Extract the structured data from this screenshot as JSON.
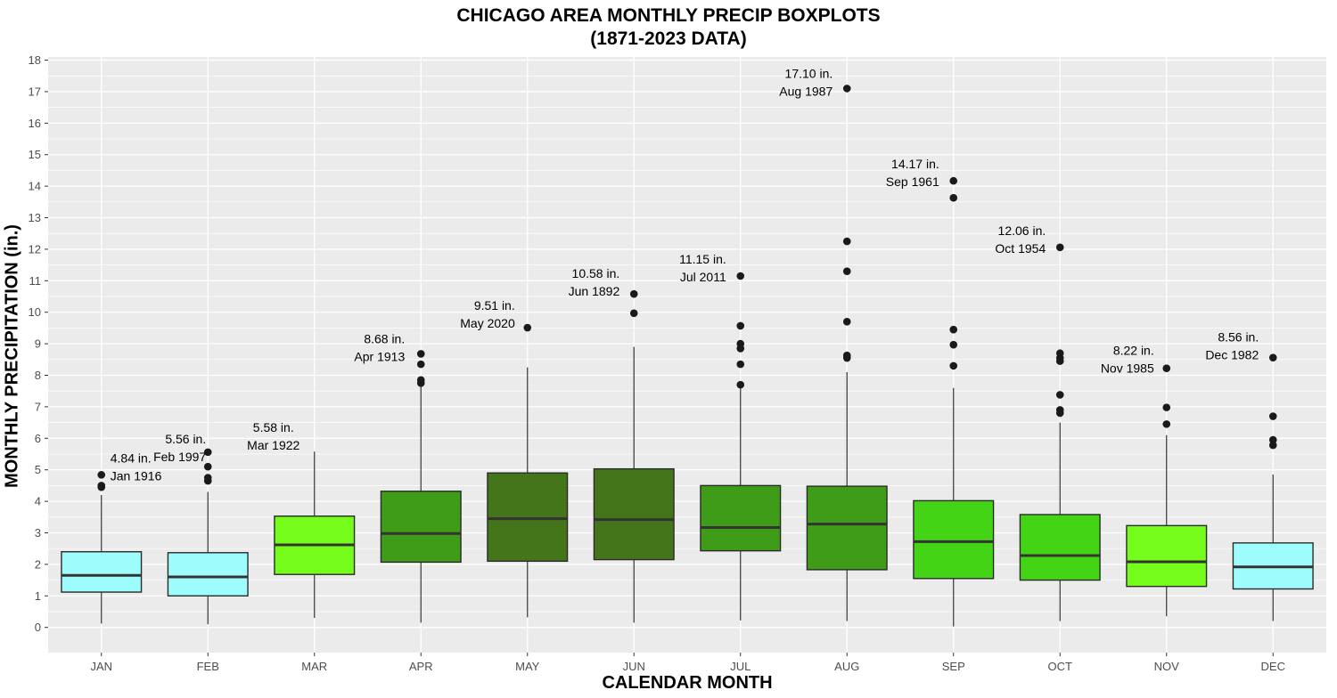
{
  "chart_data": {
    "type": "boxplot",
    "title": "CHICAGO AREA MONTHLY PRECIP BOXPLOTS",
    "subtitle": "(1871-2023 DATA)",
    "xlabel": "CALENDAR MONTH",
    "ylabel": "MONTHLY PRECIPITATION (in.)",
    "ylim": [
      -0.8,
      18.1
    ],
    "yticks": [
      0,
      1,
      2,
      3,
      4,
      5,
      6,
      7,
      8,
      9,
      10,
      11,
      12,
      13,
      14,
      15,
      16,
      17,
      18
    ],
    "grid": true,
    "categories": [
      "JAN",
      "FEB",
      "MAR",
      "APR",
      "MAY",
      "JUN",
      "JUL",
      "AUG",
      "SEP",
      "OCT",
      "NOV",
      "DEC"
    ],
    "boxes": [
      {
        "month": "JAN",
        "min": 0.12,
        "q1": 1.12,
        "median": 1.65,
        "q3": 2.4,
        "max": 4.2,
        "outliers": [
          4.84,
          4.5,
          4.45
        ],
        "color": "#9ffcfc",
        "record_value": "4.84 in.",
        "record_date": "Jan 1916"
      },
      {
        "month": "FEB",
        "min": 0.1,
        "q1": 1.0,
        "median": 1.6,
        "q3": 2.37,
        "max": 4.3,
        "outliers": [
          5.56,
          5.1,
          4.75,
          4.65
        ],
        "color": "#9ffcfc",
        "record_value": "5.56 in.",
        "record_date": "Feb 1997"
      },
      {
        "month": "MAR",
        "min": 0.3,
        "q1": 1.68,
        "median": 2.62,
        "q3": 3.53,
        "max": 5.58,
        "outliers": [],
        "color": "#76fc1b",
        "record_value": "5.58 in.",
        "record_date": "Mar 1922"
      },
      {
        "month": "APR",
        "min": 0.15,
        "q1": 2.07,
        "median": 2.98,
        "q3": 4.32,
        "max": 7.65,
        "outliers": [
          8.68,
          8.35,
          7.85,
          7.75
        ],
        "color": "#3f9c18",
        "record_value": "8.68 in.",
        "record_date": "Apr 1913"
      },
      {
        "month": "MAY",
        "min": 0.32,
        "q1": 2.1,
        "median": 3.45,
        "q3": 4.9,
        "max": 8.25,
        "outliers": [
          9.51
        ],
        "color": "#45751b",
        "record_value": "9.51 in.",
        "record_date": "May 2020"
      },
      {
        "month": "JUN",
        "min": 0.15,
        "q1": 2.15,
        "median": 3.42,
        "q3": 5.03,
        "max": 8.9,
        "outliers": [
          10.58,
          9.97
        ],
        "color": "#45751b",
        "record_value": "10.58 in.",
        "record_date": "Jun 1892"
      },
      {
        "month": "JUL",
        "min": 0.22,
        "q1": 2.43,
        "median": 3.17,
        "q3": 4.5,
        "max": 7.6,
        "outliers": [
          11.15,
          9.57,
          9.0,
          8.85,
          8.35,
          7.7
        ],
        "color": "#3f9c18",
        "record_value": "11.15 in.",
        "record_date": "Jul 2011"
      },
      {
        "month": "AUG",
        "min": 0.2,
        "q1": 1.83,
        "median": 3.28,
        "q3": 4.48,
        "max": 8.1,
        "outliers": [
          17.1,
          12.25,
          11.3,
          9.7,
          8.63,
          8.55
        ],
        "color": "#3f9c18",
        "record_value": "17.10 in.",
        "record_date": "Aug 1987"
      },
      {
        "month": "SEP",
        "min": 0.03,
        "q1": 1.55,
        "median": 2.72,
        "q3": 4.02,
        "max": 7.6,
        "outliers": [
          14.17,
          13.63,
          9.45,
          8.97,
          8.3
        ],
        "color": "#43d416",
        "record_value": "14.17 in.",
        "record_date": "Sep 1961"
      },
      {
        "month": "OCT",
        "min": 0.2,
        "q1": 1.5,
        "median": 2.28,
        "q3": 3.58,
        "max": 6.5,
        "outliers": [
          12.06,
          8.7,
          8.55,
          8.45,
          7.38,
          6.9,
          6.8
        ],
        "color": "#43d416",
        "record_value": "12.06 in.",
        "record_date": "Oct 1954"
      },
      {
        "month": "NOV",
        "min": 0.35,
        "q1": 1.3,
        "median": 2.08,
        "q3": 3.23,
        "max": 6.1,
        "outliers": [
          8.22,
          6.98,
          6.45
        ],
        "color": "#76fc1b",
        "record_value": "8.22 in.",
        "record_date": "Nov 1985"
      },
      {
        "month": "DEC",
        "min": 0.2,
        "q1": 1.22,
        "median": 1.92,
        "q3": 2.68,
        "max": 4.85,
        "outliers": [
          8.56,
          6.7,
          5.95,
          5.78
        ],
        "color": "#9ffcfc",
        "record_value": "8.56 in.",
        "record_date": "Dec 1982"
      }
    ],
    "colors": {
      "panel_background": "#ebebeb",
      "grid": "#ffffff",
      "box_outline": "#2b2b2b",
      "median": "#333333",
      "whisker": "#333333",
      "outlier": "#1a1a1a",
      "tick_text": "#4d4d4d",
      "annotation_text": "#000000"
    }
  }
}
